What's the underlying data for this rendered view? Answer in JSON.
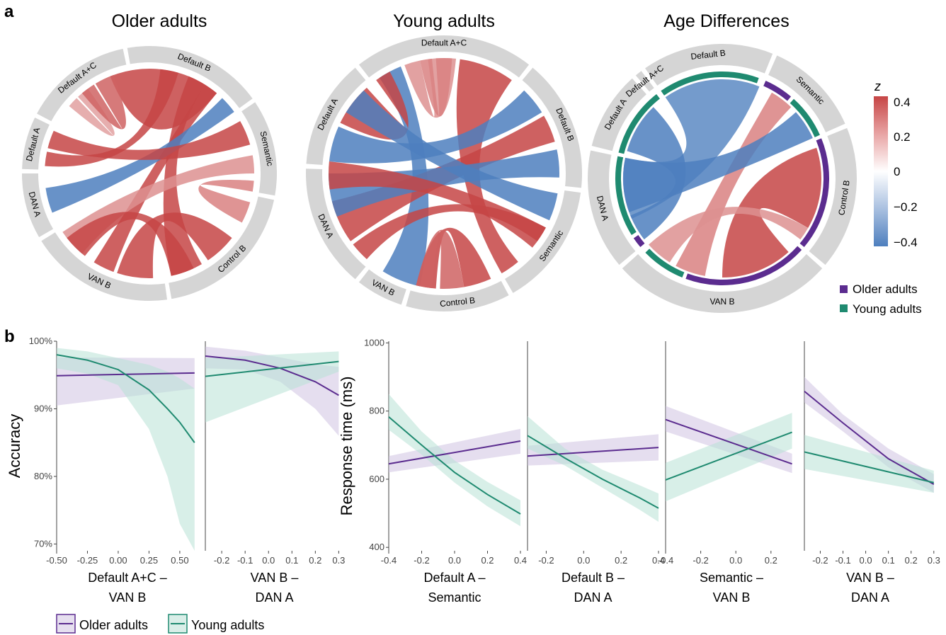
{
  "panel_a": {
    "label": "a",
    "legend": {
      "title": "z",
      "ticks": [
        "0.4",
        "0.2",
        "0",
        "−0.2",
        "−0.4"
      ]
    },
    "group_legend": [
      {
        "name": "Older adults",
        "color": "#5b2c8f"
      },
      {
        "name": "Young adults",
        "color": "#1f8a70"
      }
    ]
  },
  "panel_b": {
    "label": "b",
    "bottom_legend": [
      {
        "name": "Older adults",
        "color": "#5b2c8f"
      },
      {
        "name": "Young adults",
        "color": "#1f8a70"
      }
    ]
  },
  "colors": {
    "older": "#5b2c8f",
    "young": "#1f8a70",
    "pos": "#c64545",
    "neg": "#4e7fbe",
    "sector": "#d5d5d5"
  },
  "chart_data": [
    {
      "type": "chord",
      "title": "Older adults",
      "sectors": [
        "Default A+C",
        "Default B",
        "Semantic",
        "Control B",
        "VAN B",
        "DAN A",
        "Default A"
      ],
      "sector_spans": [
        [
          -62,
          -12
        ],
        [
          -10,
          54
        ],
        [
          56,
          100
        ],
        [
          102,
          170
        ],
        [
          172,
          238
        ],
        [
          240,
          270
        ],
        [
          272,
          296
        ]
      ],
      "links": [
        {
          "from": [
            -22,
            -5
          ],
          "to": [
            -8,
            40
          ],
          "z": 0.4
        },
        {
          "from": [
            -50,
            -44
          ],
          "to": [
            -43,
            -36
          ],
          "z": 0.1
        },
        {
          "from": [
            -40,
            -32
          ],
          "to": [
            -31,
            -20
          ],
          "z": 0.3
        },
        {
          "from": [
            6,
            16
          ],
          "to": [
            274,
            282
          ],
          "z": 0.4
        },
        {
          "from": [
            22,
            32
          ],
          "to": [
            150,
            168
          ],
          "z": 0.4
        },
        {
          "from": [
            32,
            40
          ],
          "to": [
            200,
            212
          ],
          "z": 0.4
        },
        {
          "from": [
            44,
            54
          ],
          "to": [
            248,
            262
          ],
          "z": -0.4
        },
        {
          "from": [
            60,
            74
          ],
          "to": [
            284,
            294
          ],
          "z": 0.4
        },
        {
          "from": [
            80,
            90
          ],
          "to": [
            220,
            236
          ],
          "z": 0.15
        },
        {
          "from": [
            94,
            100
          ],
          "to": [
            106,
            118
          ],
          "z": 0.2
        },
        {
          "from": [
            128,
            146
          ],
          "to": [
            178,
            198
          ],
          "z": 0.4
        },
        {
          "from": [
            155,
            168
          ],
          "to": [
            218,
            232
          ],
          "z": 0.4
        }
      ]
    },
    {
      "type": "chord",
      "title": "Young adults",
      "sectors": [
        "Default A+C",
        "Default B",
        "Semantic",
        "Control B",
        "VAN B",
        "DAN A",
        "Default A"
      ],
      "sector_spans": [
        [
          -38,
          38
        ],
        [
          40,
          96
        ],
        [
          98,
          150
        ],
        [
          152,
          196
        ],
        [
          198,
          218
        ],
        [
          220,
          272
        ],
        [
          274,
          320
        ]
      ],
      "links": [
        {
          "from": [
            -34,
            -22
          ],
          "to": [
            192,
            212
          ],
          "z": -0.4
        },
        {
          "from": [
            -20,
            -12
          ],
          "to": [
            -8,
            6
          ],
          "z": 0.15
        },
        {
          "from": [
            -12,
            -6
          ],
          "to": [
            -4,
            4
          ],
          "z": 0.2
        },
        {
          "from": [
            8,
            36
          ],
          "to": [
            140,
            150
          ],
          "z": 0.4
        },
        {
          "from": [
            -36,
            -28
          ],
          "to": [
            296,
            318
          ],
          "z": 0.4
        },
        {
          "from": [
            44,
            58
          ],
          "to": [
            276,
            294
          ],
          "z": -0.4
        },
        {
          "from": [
            60,
            74
          ],
          "to": [
            234,
            256
          ],
          "z": 0.4
        },
        {
          "from": [
            78,
            92
          ],
          "to": [
            248,
            270
          ],
          "z": -0.4
        },
        {
          "from": [
            100,
            114
          ],
          "to": [
            302,
            316
          ],
          "z": -0.4
        },
        {
          "from": [
            118,
            130
          ],
          "to": [
            262,
            276
          ],
          "z": 0.4
        },
        {
          "from": [
            156,
            170
          ],
          "to": [
            184,
            194
          ],
          "z": 0.4
        },
        {
          "from": [
            170,
            182
          ],
          "to": [
            186,
            194
          ],
          "z": 0.3
        },
        {
          "from": [
            118,
            126
          ],
          "to": [
            222,
            232
          ],
          "z": 0.4
        }
      ]
    },
    {
      "type": "chord",
      "title": "Age Differences",
      "sectors": [
        "Default B",
        "Semantic",
        "Control B",
        "VAN B",
        "DAN A",
        "Default A",
        "Default A+C"
      ],
      "sector_spans": [
        [
          -35,
          22
        ],
        [
          24,
          66
        ],
        [
          68,
          130
        ],
        [
          132,
          228
        ],
        [
          230,
          282
        ],
        [
          284,
          318
        ],
        [
          320,
          323
        ]
      ],
      "links": [
        {
          "from": [
            -35,
            22
          ],
          "to": [
            246,
            282
          ],
          "z": -0.35
        },
        {
          "from": [
            30,
            44
          ],
          "to": [
            190,
            208
          ],
          "z": 0.2
        },
        {
          "from": [
            48,
            66
          ],
          "to": [
            250,
            282
          ],
          "z": -0.4
        },
        {
          "from": [
            72,
            120
          ],
          "to": [
            138,
            180
          ],
          "z": 0.4
        },
        {
          "from": [
            120,
            128
          ],
          "to": [
            212,
            228
          ],
          "z": 0.15
        },
        {
          "from": [
            286,
            316
          ],
          "to": [
            232,
            248
          ],
          "z": -0.4
        }
      ],
      "group_ring": [
        {
          "span": [
            -35,
            20
          ],
          "group": "young"
        },
        {
          "span": [
            24,
            40
          ],
          "group": "older"
        },
        {
          "span": [
            42,
            66
          ],
          "group": "young"
        },
        {
          "span": [
            68,
            130
          ],
          "group": "older"
        },
        {
          "span": [
            132,
            200
          ],
          "group": "older"
        },
        {
          "span": [
            202,
            226
          ],
          "group": "young"
        },
        {
          "span": [
            230,
            236
          ],
          "group": "older"
        },
        {
          "span": [
            238,
            282
          ],
          "group": "young"
        },
        {
          "span": [
            284,
            322
          ],
          "group": "young"
        }
      ]
    },
    {
      "type": "line",
      "ylabel": "Accuracy",
      "xlabel": [
        "Default A+C –",
        "VAN B"
      ],
      "xlim": [
        -0.5,
        0.65
      ],
      "ylim": [
        0.69,
        1.0
      ],
      "xticks": [
        "-0.50",
        "-0.25",
        "0.00",
        "0.25",
        "0.50"
      ],
      "xtick_vals": [
        -0.5,
        -0.25,
        0,
        0.25,
        0.5
      ],
      "yticks": [
        "70%",
        "80%",
        "90%",
        "100%"
      ],
      "ytick_vals": [
        0.7,
        0.8,
        0.9,
        1.0
      ],
      "series": [
        {
          "name": "Older adults",
          "x": [
            -0.5,
            0.62
          ],
          "y": [
            0.949,
            0.953
          ],
          "lo": [
            0.905,
            0.93
          ],
          "hi": [
            0.976,
            0.975
          ]
        },
        {
          "name": "Young adults",
          "x": [
            -0.5,
            -0.25,
            0,
            0.25,
            0.4,
            0.5,
            0.62
          ],
          "y": [
            0.98,
            0.972,
            0.958,
            0.928,
            0.9,
            0.88,
            0.85
          ],
          "lo": [
            0.96,
            0.952,
            0.935,
            0.87,
            0.8,
            0.73,
            0.69
          ],
          "hi": [
            0.99,
            0.985,
            0.975,
            0.965,
            0.955,
            0.945,
            0.93
          ]
        }
      ]
    },
    {
      "type": "line",
      "xlabel": [
        "VAN B –",
        "DAN A"
      ],
      "xlim": [
        -0.27,
        0.32
      ],
      "ylim": [
        0.69,
        1.0
      ],
      "xticks": [
        "-0.2",
        "-0.1",
        "0.0",
        "0.1",
        "0.2",
        "0.3"
      ],
      "xtick_vals": [
        -0.2,
        -0.1,
        0,
        0.1,
        0.2,
        0.3
      ],
      "series": [
        {
          "name": "Older adults",
          "x": [
            -0.27,
            -0.1,
            0.05,
            0.2,
            0.3
          ],
          "y": [
            0.978,
            0.972,
            0.96,
            0.94,
            0.92
          ],
          "lo": [
            0.96,
            0.958,
            0.94,
            0.9,
            0.86
          ],
          "hi": [
            0.992,
            0.986,
            0.976,
            0.966,
            0.962
          ]
        },
        {
          "name": "Young adults",
          "x": [
            -0.27,
            0.3
          ],
          "y": [
            0.948,
            0.97
          ],
          "lo": [
            0.88,
            0.955
          ],
          "hi": [
            0.975,
            0.985
          ]
        }
      ]
    },
    {
      "type": "line",
      "ylabel": "Response time (ms)",
      "xlabel": [
        "Default A –",
        "Semantic"
      ],
      "xlim": [
        -0.4,
        0.4
      ],
      "ylim": [
        390,
        1005
      ],
      "xticks": [
        "-0.4",
        "-0.2",
        "0.0",
        "0.2",
        "0.4"
      ],
      "xtick_vals": [
        -0.4,
        -0.2,
        0,
        0.2,
        0.4
      ],
      "yticks": [
        "400",
        "600",
        "800",
        "1000"
      ],
      "ytick_vals": [
        400,
        600,
        800,
        1000
      ],
      "series": [
        {
          "name": "Older adults",
          "x": [
            -0.4,
            0.4
          ],
          "y": [
            645,
            712
          ],
          "lo": [
            620,
            675
          ],
          "hi": [
            668,
            748
          ]
        },
        {
          "name": "Young adults",
          "x": [
            -0.4,
            -0.2,
            0,
            0.2,
            0.4
          ],
          "y": [
            783,
            700,
            620,
            555,
            498
          ],
          "lo": [
            745,
            672,
            590,
            520,
            462
          ],
          "hi": [
            850,
            740,
            655,
            592,
            538
          ]
        }
      ]
    },
    {
      "type": "line",
      "xlabel": [
        "Default B –",
        "DAN A"
      ],
      "xlim": [
        -0.3,
        0.4
      ],
      "ylim": [
        390,
        1005
      ],
      "xticks": [
        "-0.2",
        "0.0",
        "0.2",
        "0.4"
      ],
      "xtick_vals": [
        -0.2,
        0,
        0.2,
        0.4
      ],
      "series": [
        {
          "name": "Older adults",
          "x": [
            -0.3,
            0.4
          ],
          "y": [
            668,
            693
          ],
          "lo": [
            640,
            655
          ],
          "hi": [
            698,
            732
          ]
        },
        {
          "name": "Young adults",
          "x": [
            -0.3,
            -0.1,
            0.1,
            0.3,
            0.4
          ],
          "y": [
            728,
            662,
            600,
            545,
            515
          ],
          "lo": [
            690,
            640,
            575,
            510,
            475
          ],
          "hi": [
            785,
            690,
            628,
            582,
            558
          ]
        }
      ]
    },
    {
      "type": "line",
      "xlabel": [
        "Semantic –",
        "VAN B"
      ],
      "xlim": [
        -0.4,
        0.35
      ],
      "ylim": [
        390,
        1005
      ],
      "xticks": [
        "-0.4",
        "-0.2",
        "0.0",
        "0.2"
      ],
      "xtick_vals": [
        -0.4,
        -0.2,
        0,
        0.2
      ],
      "series": [
        {
          "name": "Older adults",
          "x": [
            -0.4,
            0.32
          ],
          "y": [
            775,
            645
          ],
          "lo": [
            740,
            618
          ],
          "hi": [
            815,
            675
          ]
        },
        {
          "name": "Young adults",
          "x": [
            -0.4,
            0.32
          ],
          "y": [
            598,
            738
          ],
          "lo": [
            535,
            690
          ],
          "hi": [
            648,
            795
          ]
        }
      ]
    },
    {
      "type": "line",
      "xlabel": [
        "VAN B –",
        "DAN A"
      ],
      "xlim": [
        -0.27,
        0.31
      ],
      "ylim": [
        390,
        1005
      ],
      "xticks": [
        "-0.2",
        "-0.1",
        "0.0",
        "0.1",
        "0.2",
        "0.3"
      ],
      "xtick_vals": [
        -0.2,
        -0.1,
        0,
        0.1,
        0.2,
        0.3
      ],
      "series": [
        {
          "name": "Older adults",
          "x": [
            -0.27,
            -0.1,
            0.1,
            0.3
          ],
          "y": [
            858,
            765,
            660,
            585
          ],
          "lo": [
            825,
            740,
            635,
            560
          ],
          "hi": [
            900,
            790,
            690,
            615
          ]
        },
        {
          "name": "Young adults",
          "x": [
            -0.27,
            0.3
          ],
          "y": [
            680,
            590
          ],
          "lo": [
            630,
            560
          ],
          "hi": [
            730,
            625
          ]
        }
      ]
    }
  ]
}
